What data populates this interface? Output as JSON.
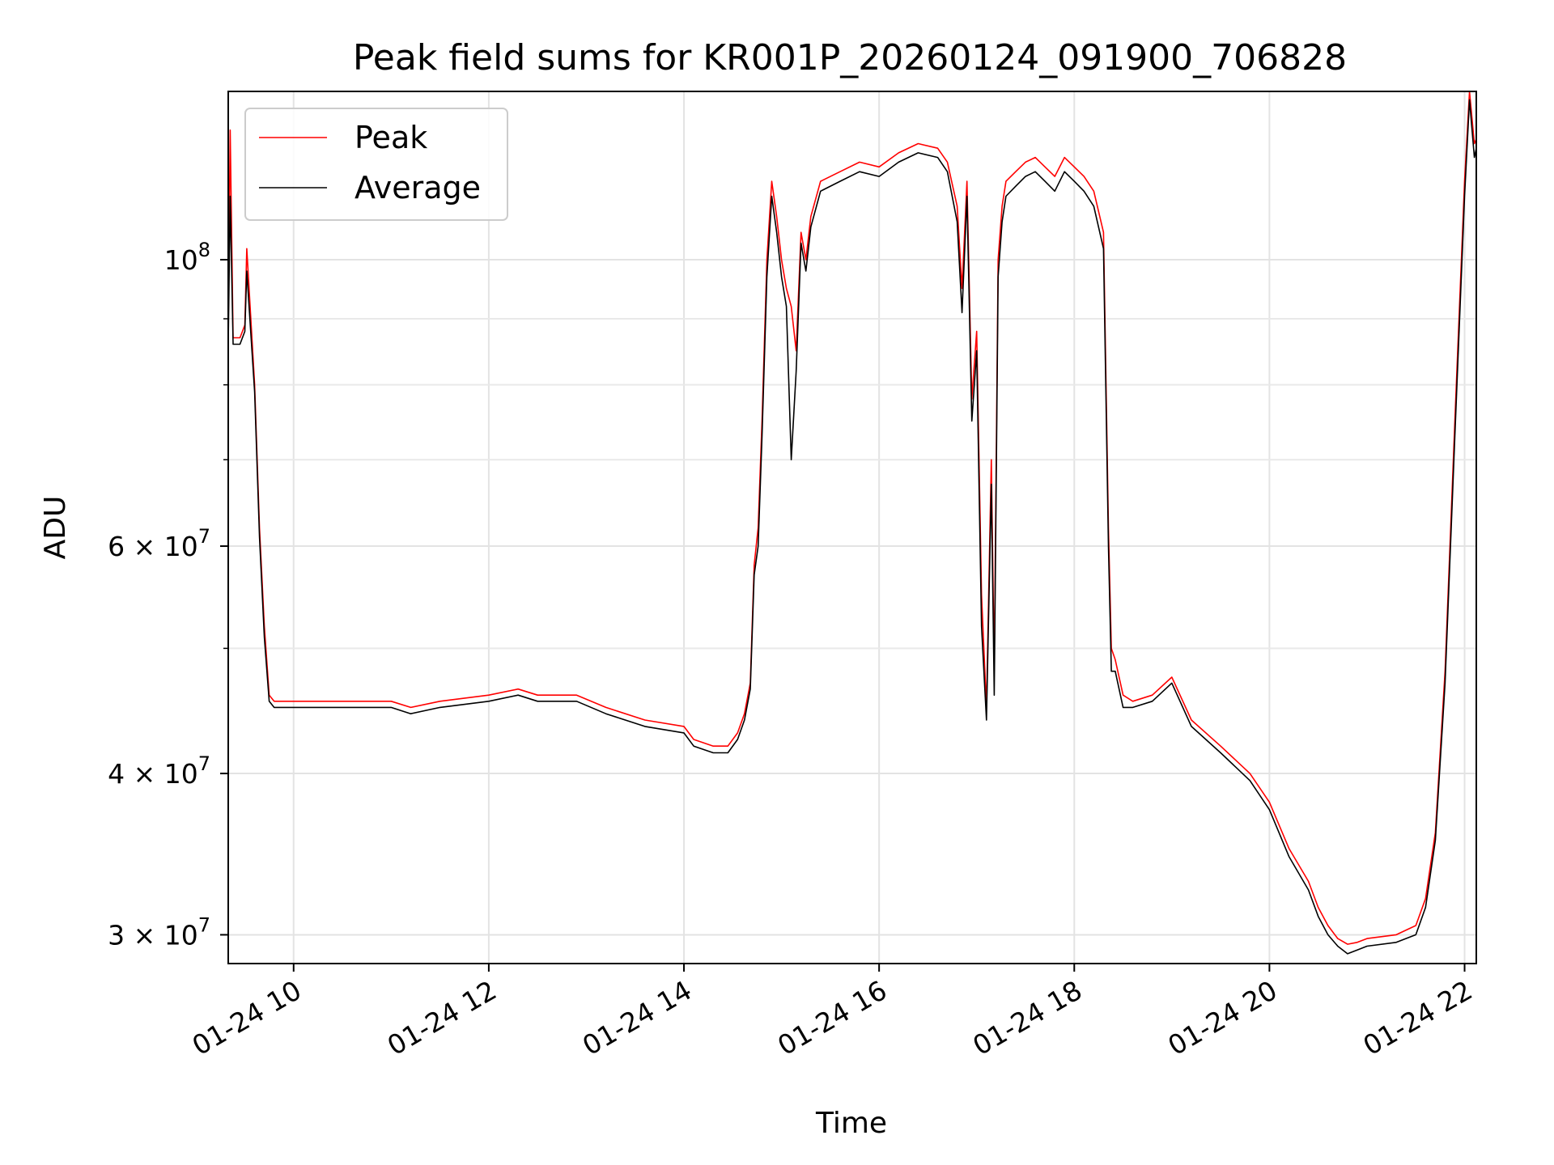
{
  "chart_data": {
    "type": "line",
    "title": "Peak field sums for KR001P_20260124_091900_706828",
    "xlabel": "Time",
    "ylabel": "ADU",
    "x_unit": "hours since 01-24 00:00",
    "xlim": [
      9.33,
      22.12
    ],
    "ylim": [
      28500000,
      135000000
    ],
    "y_scale": "log",
    "grid": true,
    "legend_position": "upper-left",
    "x_ticks": [
      {
        "value": 10,
        "label": "01-24 10"
      },
      {
        "value": 12,
        "label": "01-24 12"
      },
      {
        "value": 14,
        "label": "01-24 14"
      },
      {
        "value": 16,
        "label": "01-24 16"
      },
      {
        "value": 18,
        "label": "01-24 18"
      },
      {
        "value": 20,
        "label": "01-24 20"
      },
      {
        "value": 22,
        "label": "01-24 22"
      }
    ],
    "y_ticks": [
      {
        "value": 30000000,
        "mantissa": "3",
        "exponent": "7"
      },
      {
        "value": 40000000,
        "mantissa": "4",
        "exponent": "7"
      },
      {
        "value": 60000000,
        "mantissa": "6",
        "exponent": "7"
      },
      {
        "value": 100000000,
        "mantissa": "",
        "exponent": "8"
      }
    ],
    "y_minor_ticks": [
      50000000,
      70000000,
      80000000,
      90000000
    ],
    "series": [
      {
        "name": "Peak",
        "color": "#ff0000",
        "x": [
          9.33,
          9.35,
          9.38,
          9.45,
          9.5,
          9.52,
          9.6,
          9.65,
          9.7,
          9.75,
          9.8,
          10.0,
          10.5,
          11.0,
          11.2,
          11.5,
          12.0,
          12.3,
          12.5,
          12.9,
          13.2,
          13.6,
          14.0,
          14.1,
          14.3,
          14.45,
          14.55,
          14.62,
          14.68,
          14.72,
          14.76,
          14.8,
          14.85,
          14.9,
          14.95,
          15.0,
          15.05,
          15.1,
          15.15,
          15.2,
          15.25,
          15.3,
          15.4,
          15.6,
          15.8,
          16.0,
          16.2,
          16.4,
          16.6,
          16.7,
          16.8,
          16.85,
          16.9,
          16.95,
          17.0,
          17.05,
          17.1,
          17.15,
          17.18,
          17.22,
          17.26,
          17.3,
          17.4,
          17.5,
          17.6,
          17.7,
          17.8,
          17.9,
          18.0,
          18.1,
          18.2,
          18.3,
          18.35,
          18.38,
          18.42,
          18.5,
          18.6,
          18.8,
          19.0,
          19.2,
          19.5,
          19.8,
          20.0,
          20.2,
          20.4,
          20.5,
          20.6,
          20.7,
          20.8,
          20.9,
          21.0,
          21.3,
          21.5,
          21.6,
          21.7,
          21.8,
          21.9,
          22.0,
          22.05,
          22.1,
          22.12
        ],
        "y": [
          88000000,
          126000000,
          87000000,
          87000000,
          89000000,
          102000000,
          80000000,
          62000000,
          52000000,
          46000000,
          45500000,
          45500000,
          45500000,
          45500000,
          45000000,
          45500000,
          46000000,
          46500000,
          46000000,
          46000000,
          45000000,
          44000000,
          43500000,
          42500000,
          42000000,
          42000000,
          43000000,
          44500000,
          47000000,
          58000000,
          62000000,
          75000000,
          100000000,
          115000000,
          108000000,
          100000000,
          95000000,
          92000000,
          85000000,
          105000000,
          100000000,
          108000000,
          115000000,
          117000000,
          119000000,
          118000000,
          121000000,
          123000000,
          122000000,
          119000000,
          110000000,
          95000000,
          115000000,
          78000000,
          88000000,
          55000000,
          45000000,
          70000000,
          48000000,
          100000000,
          110000000,
          115000000,
          117000000,
          119000000,
          120000000,
          118000000,
          116000000,
          120000000,
          118000000,
          116000000,
          113000000,
          105000000,
          62000000,
          50000000,
          49000000,
          46000000,
          45500000,
          46000000,
          47500000,
          44000000,
          42000000,
          40000000,
          38000000,
          35000000,
          33000000,
          31500000,
          30500000,
          29800000,
          29500000,
          29600000,
          29800000,
          30000000,
          30500000,
          32000000,
          36000000,
          48000000,
          75000000,
          115000000,
          135000000,
          123000000,
          124000000
        ]
      },
      {
        "name": "Average",
        "color": "#000000",
        "x": [
          9.33,
          9.35,
          9.38,
          9.45,
          9.5,
          9.52,
          9.6,
          9.65,
          9.7,
          9.75,
          9.8,
          10.0,
          10.5,
          11.0,
          11.2,
          11.5,
          12.0,
          12.3,
          12.5,
          12.9,
          13.2,
          13.6,
          14.0,
          14.1,
          14.3,
          14.45,
          14.55,
          14.62,
          14.68,
          14.72,
          14.76,
          14.8,
          14.85,
          14.9,
          14.95,
          15.0,
          15.05,
          15.1,
          15.15,
          15.2,
          15.25,
          15.3,
          15.4,
          15.6,
          15.8,
          16.0,
          16.2,
          16.4,
          16.6,
          16.7,
          16.8,
          16.85,
          16.9,
          16.95,
          17.0,
          17.05,
          17.1,
          17.15,
          17.18,
          17.22,
          17.26,
          17.3,
          17.4,
          17.5,
          17.6,
          17.7,
          17.8,
          17.9,
          18.0,
          18.1,
          18.2,
          18.3,
          18.35,
          18.38,
          18.42,
          18.5,
          18.6,
          18.8,
          19.0,
          19.2,
          19.5,
          19.8,
          20.0,
          20.2,
          20.4,
          20.5,
          20.6,
          20.7,
          20.8,
          20.9,
          21.0,
          21.3,
          21.5,
          21.6,
          21.7,
          21.8,
          21.9,
          22.0,
          22.05,
          22.1,
          22.12
        ],
        "y": [
          86000000,
          112000000,
          86000000,
          86000000,
          88000000,
          98000000,
          79000000,
          61000000,
          51000000,
          45500000,
          45000000,
          45000000,
          45000000,
          45000000,
          44500000,
          45000000,
          45500000,
          46000000,
          45500000,
          45500000,
          44500000,
          43500000,
          43000000,
          42000000,
          41500000,
          41500000,
          42500000,
          44000000,
          46500000,
          57000000,
          60000000,
          73000000,
          97000000,
          112000000,
          105000000,
          97000000,
          92000000,
          70000000,
          82000000,
          103000000,
          98000000,
          106000000,
          113000000,
          115000000,
          117000000,
          116000000,
          119000000,
          121000000,
          120000000,
          117000000,
          107000000,
          91000000,
          112000000,
          75000000,
          85000000,
          52000000,
          44000000,
          67000000,
          46000000,
          97000000,
          107000000,
          112000000,
          114000000,
          116000000,
          117000000,
          115000000,
          113000000,
          117000000,
          115000000,
          113000000,
          110000000,
          102000000,
          60000000,
          48000000,
          48000000,
          45000000,
          45000000,
          45500000,
          47000000,
          43500000,
          41500000,
          39500000,
          37500000,
          34500000,
          32500000,
          31000000,
          30000000,
          29400000,
          29000000,
          29200000,
          29400000,
          29600000,
          30000000,
          31500000,
          35500000,
          47000000,
          73000000,
          112000000,
          133000000,
          120000000,
          122000000
        ]
      }
    ]
  }
}
